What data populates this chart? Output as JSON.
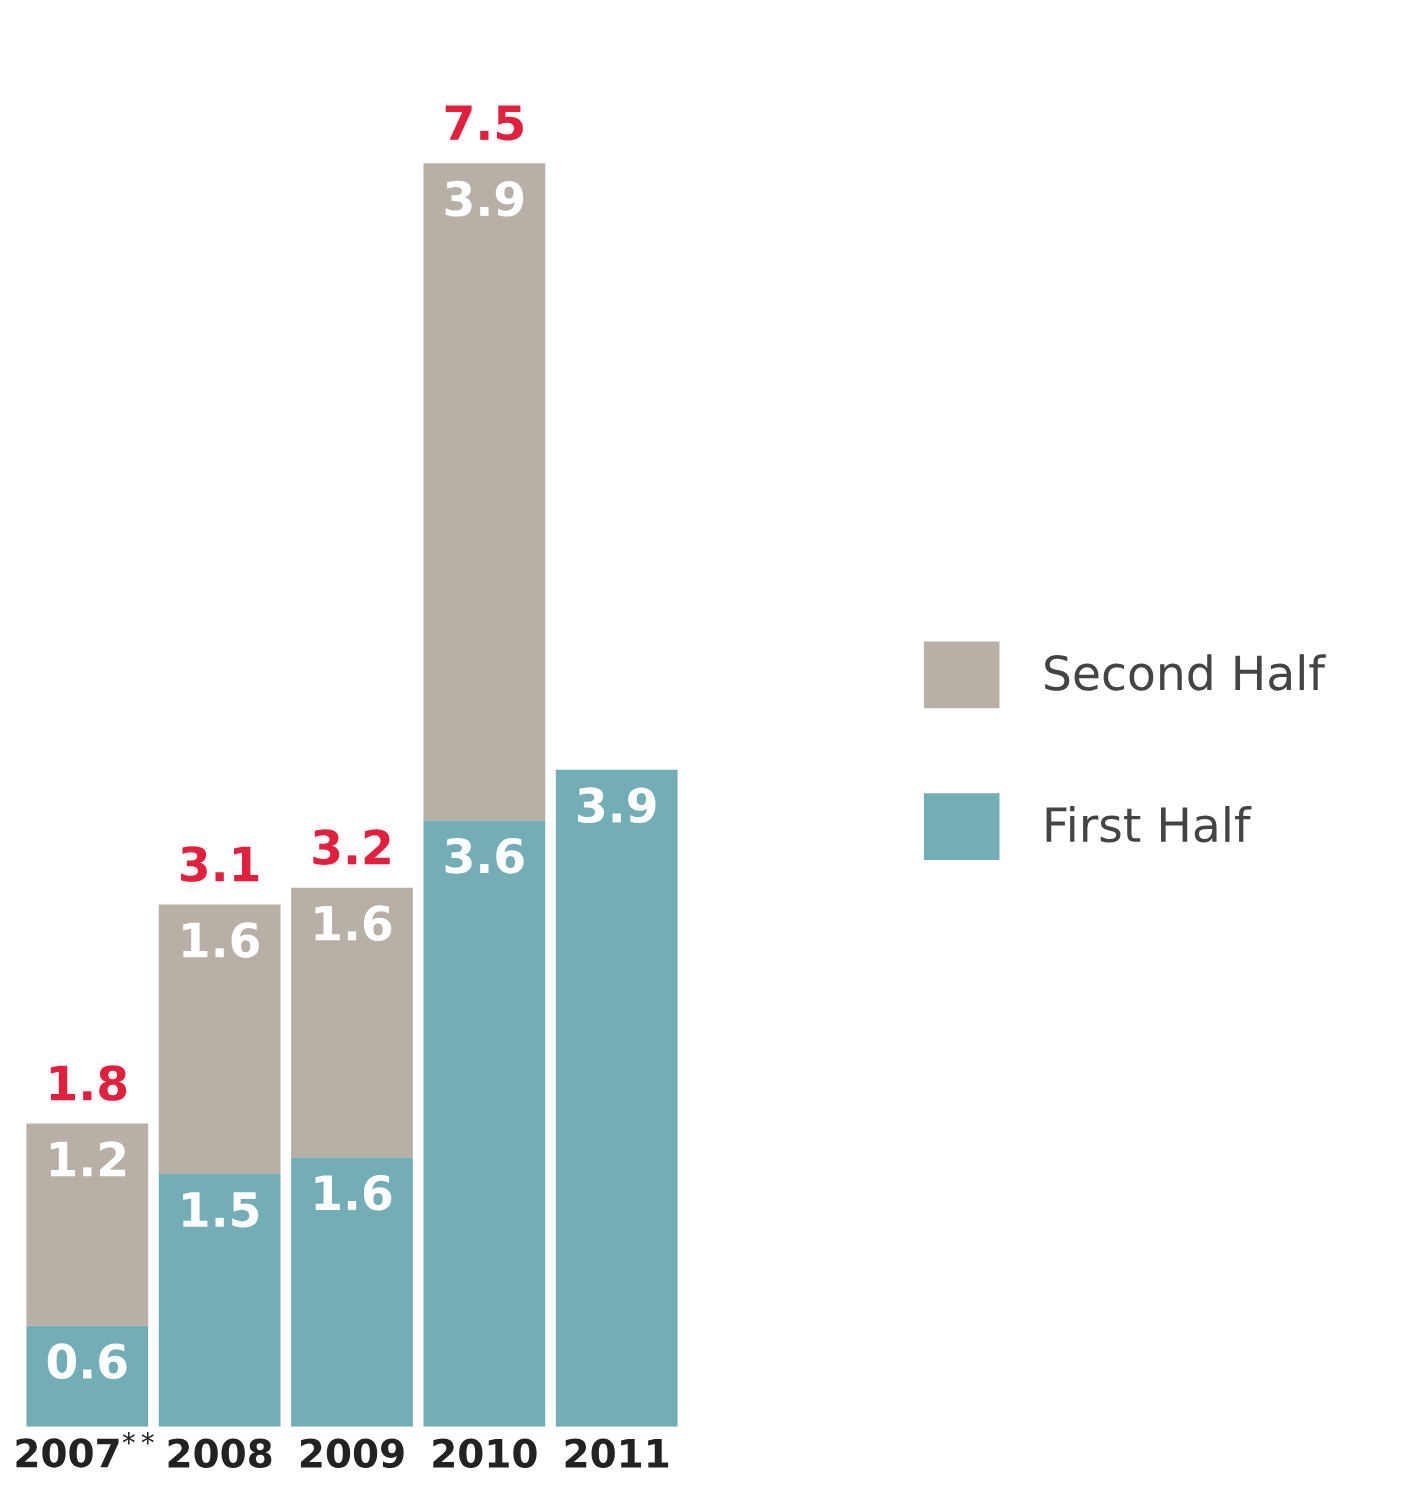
{
  "chart_data": {
    "type": "bar",
    "stacked": true,
    "categories": [
      "2007$^{**}$",
      "2008",
      "2009",
      "2010",
      "2011"
    ],
    "series": [
      {
        "name": "First Half",
        "color": "#73aeb6",
        "values": [
          0.6,
          1.5,
          1.6,
          3.6,
          3.9
        ]
      },
      {
        "name": "Second Half",
        "color": "#b8b0a6",
        "values": [
          1.2,
          1.6,
          1.6,
          3.9,
          null
        ]
      }
    ],
    "totals": [
      "1.8",
      "3.1",
      "3.2",
      "7.5",
      null
    ],
    "data_labels": true,
    "legend": "right"
  }
}
